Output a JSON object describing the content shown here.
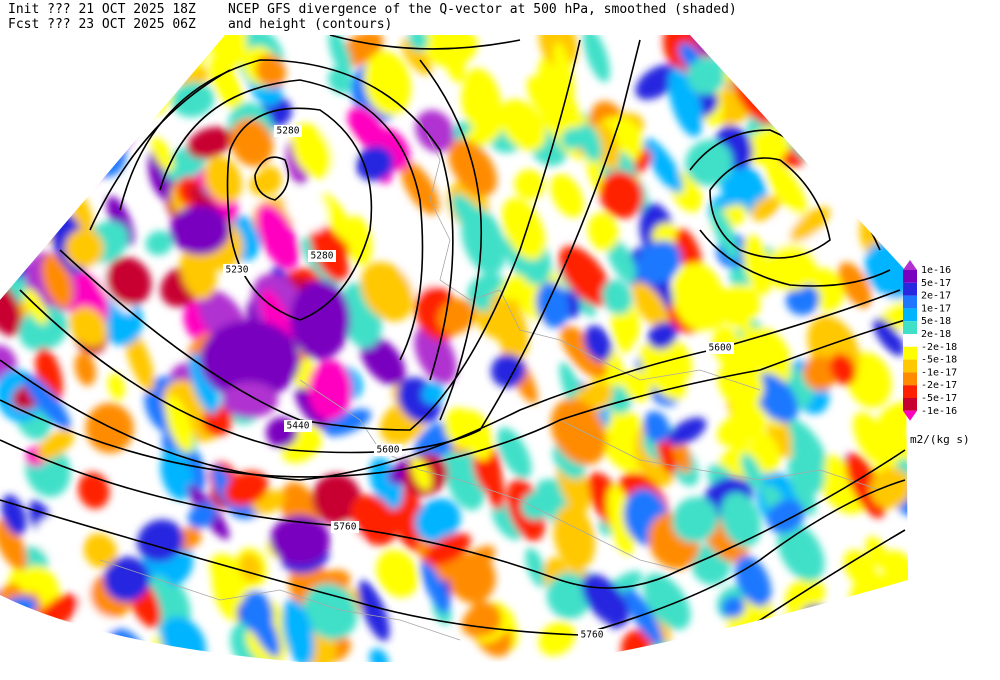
{
  "header": {
    "init": "Init  ??? 21 OCT 2025 18Z",
    "fcst": "Fcst ??? 23 OCT 2025 06Z",
    "title_line1": "NCEP GFS divergence of the Q-vector at 500 hPa, smoothed (shaded)",
    "title_line2": "and height (contours)"
  },
  "contour_labels": [
    "5280",
    "5280",
    "5230",
    "5440",
    "5600",
    "5600",
    "5760",
    "5760"
  ],
  "colorbar": {
    "labels": [
      "1e-16",
      "5e-17",
      "2e-17",
      "1e-17",
      "5e-18",
      "2e-18",
      "-2e-18",
      "-5e-18",
      "-1e-17",
      "-2e-17",
      "-5e-17",
      "-1e-16"
    ],
    "units": "m2/(kg s)"
  }
}
